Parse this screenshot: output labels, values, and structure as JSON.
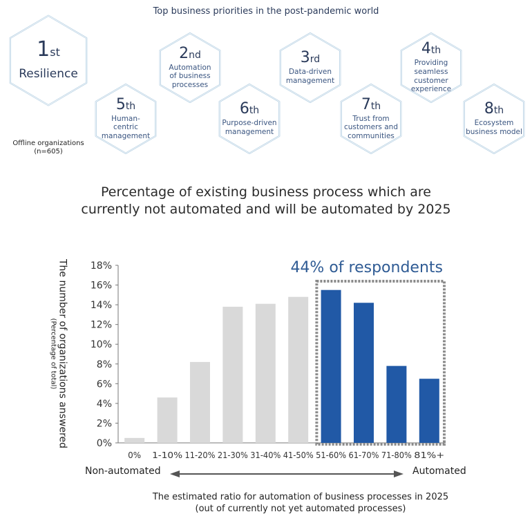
{
  "priorities": {
    "title": "Top business priorities in the post-pandemic world",
    "sample": {
      "line1": "Offline organizations",
      "line2": "(n=605)"
    },
    "items": [
      {
        "rank": "1",
        "suffix": "st",
        "label": [
          "Resilience"
        ]
      },
      {
        "rank": "2",
        "suffix": "nd",
        "label": [
          "Automation",
          "of business",
          "processes"
        ]
      },
      {
        "rank": "3",
        "suffix": "rd",
        "label": [
          "Data-driven",
          "management"
        ]
      },
      {
        "rank": "4",
        "suffix": "th",
        "label": [
          "Providing",
          "seamless",
          "customer",
          "experience"
        ]
      },
      {
        "rank": "5",
        "suffix": "th",
        "label": [
          "Human-",
          "centric",
          "management"
        ]
      },
      {
        "rank": "6",
        "suffix": "th",
        "label": [
          "Purpose-driven",
          "management"
        ]
      },
      {
        "rank": "7",
        "suffix": "th",
        "label": [
          "Trust from",
          "customers and",
          "communities"
        ]
      },
      {
        "rank": "8",
        "suffix": "th",
        "label": [
          "Ecosystem",
          "business model"
        ]
      }
    ],
    "colors": {
      "hex_border": "#a9c8de",
      "rank_text": "#2a3a5a",
      "label_text": "#3a5580"
    }
  },
  "chart_data": {
    "type": "bar",
    "title": "Percentage of existing business process which are currently not automated and will be automated by 2025",
    "title_lines": [
      "Percentage of existing business process which are",
      "currently not automated and will be automated by 2025"
    ],
    "ylabel": "The number of organizations answered",
    "ylabel_sub": "(Percentage of total)",
    "xlabel": "The estimated ratio for automation of business processes in 2025",
    "xlabel_sub": "(out of currently not yet automated processes)",
    "categories": [
      "0%",
      "1-10%",
      "11-20%",
      "21-30%",
      "31-40%",
      "41-50%",
      "51-60%",
      "61-70%",
      "71-80%",
      "81%+"
    ],
    "values": [
      0.5,
      4.6,
      8.2,
      13.8,
      14.1,
      14.8,
      15.5,
      14.2,
      7.8,
      6.5
    ],
    "highlighted": [
      false,
      false,
      false,
      false,
      false,
      false,
      true,
      true,
      true,
      true
    ],
    "ylim": [
      0,
      18
    ],
    "yticks": [
      0,
      2,
      4,
      6,
      8,
      10,
      12,
      14,
      16,
      18
    ],
    "ytick_format": "%",
    "grid": false,
    "annotation": "44% of respondents",
    "axis_left_caption": "Non-automated",
    "axis_right_caption": "Automated",
    "colors": {
      "base": "#d9d9d9",
      "highlight": "#2159a6",
      "annotation": "#2f5b94",
      "box": "#8a8a8a"
    }
  }
}
